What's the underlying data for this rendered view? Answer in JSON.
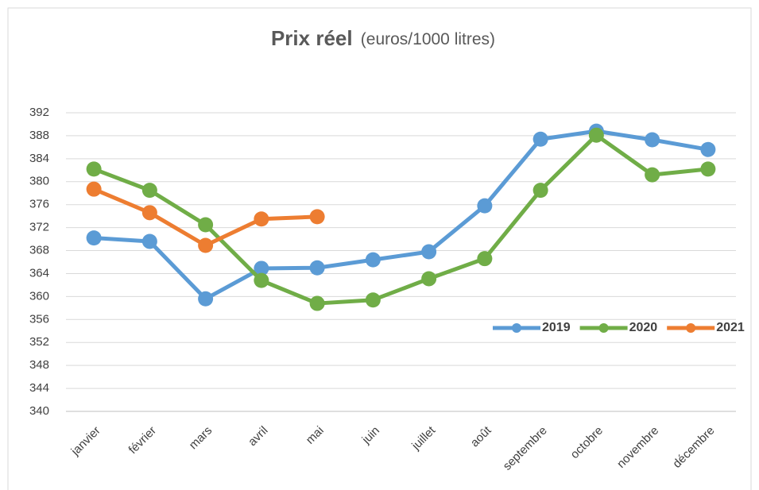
{
  "chart_data": {
    "type": "line",
    "title": "Prix réel",
    "subtitle": "(euros/1000 litres)",
    "categories": [
      "janvier",
      "février",
      "mars",
      "avril",
      "mai",
      "juin",
      "juillet",
      "août",
      "septembre",
      "octobre",
      "novembre",
      "décembre"
    ],
    "series": [
      {
        "name": "2019",
        "color": "#5b9bd5",
        "values": [
          370.2,
          369.6,
          359.6,
          364.9,
          365.0,
          366.4,
          367.8,
          375.8,
          387.4,
          388.8,
          387.3,
          385.6
        ]
      },
      {
        "name": "2020",
        "color": "#70ad47",
        "values": [
          382.2,
          378.5,
          372.5,
          362.8,
          358.8,
          359.4,
          363.1,
          366.6,
          378.5,
          388.1,
          381.2,
          382.2
        ]
      },
      {
        "name": "2021",
        "color": "#ed7d31",
        "values": [
          378.7,
          374.6,
          368.9,
          373.5,
          373.9,
          null,
          null,
          null,
          null,
          null,
          null,
          null
        ]
      }
    ],
    "ylim": [
      340,
      392
    ],
    "yticks": [
      340,
      344,
      348,
      352,
      356,
      360,
      364,
      368,
      372,
      376,
      380,
      384,
      388,
      392
    ],
    "grid": true,
    "legend": "right"
  }
}
